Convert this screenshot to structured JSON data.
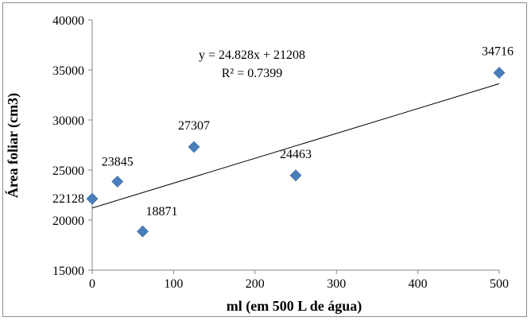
{
  "chart_data": {
    "type": "scatter",
    "xlabel": "ml (em 500 L de água)",
    "ylabel": "Área foliar (cm3)",
    "xlim": [
      0,
      500
    ],
    "ylim": [
      15000,
      40000
    ],
    "x_ticks": [
      0,
      100,
      200,
      300,
      400,
      500
    ],
    "y_ticks": [
      15000,
      20000,
      25000,
      30000,
      35000,
      40000
    ],
    "grid": false,
    "legend": "none",
    "marker_color": "#4a7ebb",
    "trendline_color": "#000000",
    "points": [
      {
        "x": 0,
        "y": 22128,
        "label": "22128"
      },
      {
        "x": 31,
        "y": 23845,
        "label": "23845"
      },
      {
        "x": 62,
        "y": 18871,
        "label": "18871"
      },
      {
        "x": 125,
        "y": 27307,
        "label": "27307"
      },
      {
        "x": 250,
        "y": 24463,
        "label": "24463"
      },
      {
        "x": 500,
        "y": 34716,
        "label": "34716"
      }
    ],
    "trendline": {
      "type": "linear",
      "slope": 24.828,
      "intercept": 21208,
      "equation": "y = 24.828x + 21208",
      "r_squared": "R² = 0.7399"
    }
  }
}
